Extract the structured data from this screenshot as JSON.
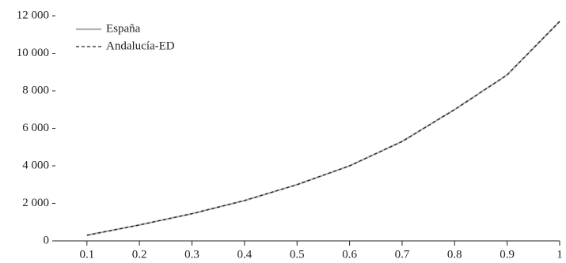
{
  "chart_data": {
    "type": "line",
    "x": [
      0.1,
      0.2,
      0.3,
      0.4,
      0.5,
      0.6,
      0.7,
      0.8,
      0.9,
      1
    ],
    "series": [
      {
        "name": "España",
        "color": "#b3b3b3",
        "dash": false,
        "values": [
          300,
          850,
          1450,
          2150,
          3000,
          4000,
          5300,
          7000,
          8850,
          11700
        ]
      },
      {
        "name": "Andalucía-ED",
        "color": "#222222",
        "dash": true,
        "values": [
          300,
          850,
          1450,
          2150,
          3000,
          4000,
          5300,
          7000,
          8850,
          11700
        ]
      }
    ],
    "xlim": [
      0.04,
      1
    ],
    "xticks": [
      0.1,
      0.2,
      0.3,
      0.4,
      0.5,
      0.6,
      0.7,
      0.8,
      0.9,
      1
    ],
    "ylim": [
      0,
      12000
    ],
    "yticks": [
      0,
      {
        "value": 2000,
        "label": "2 000"
      },
      {
        "value": 4000,
        "label": "4 000"
      },
      {
        "value": 6000,
        "label": "6 000"
      },
      {
        "value": 8000,
        "label": "8 000"
      },
      {
        "value": 10000,
        "label": "10 000"
      },
      {
        "value": 12000,
        "label": "12 000"
      }
    ],
    "legend": "upper-left"
  }
}
